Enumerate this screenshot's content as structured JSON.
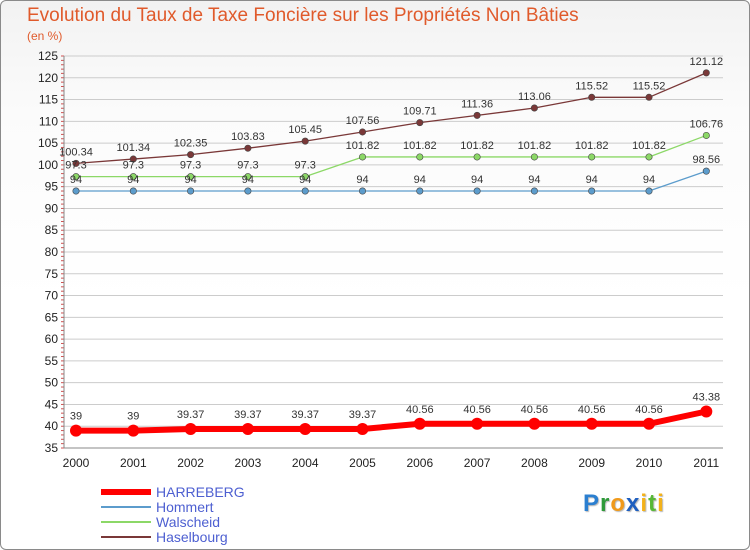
{
  "chart_data": {
    "type": "line",
    "title": "Evolution du Taux de Taxe Foncière sur les Propriétés Non Bâties",
    "subtitle": "(en %)",
    "xlabel": "",
    "ylabel": "",
    "ylim": [
      35,
      125
    ],
    "y_ticks": [
      35,
      40,
      45,
      50,
      55,
      60,
      65,
      70,
      75,
      80,
      85,
      90,
      95,
      100,
      105,
      110,
      115,
      120,
      125
    ],
    "categories": [
      "2000",
      "2001",
      "2002",
      "2003",
      "2004",
      "2005",
      "2006",
      "2007",
      "2008",
      "2009",
      "2010",
      "2011"
    ],
    "grid": "horizontal",
    "legend_position": "bottom-left",
    "series": [
      {
        "name": "HARREBERG",
        "color": "#ff0000",
        "values": [
          39,
          39,
          39.37,
          39.37,
          39.37,
          39.37,
          40.56,
          40.56,
          40.56,
          40.56,
          40.56,
          43.38
        ],
        "labels": [
          "39",
          "39",
          "39.37",
          "39.37",
          "39.37",
          "39.37",
          "40.56",
          "40.56",
          "40.56",
          "40.56",
          "40.56",
          "43.38"
        ]
      },
      {
        "name": "Hommert",
        "color": "#5c9ccc",
        "values": [
          94,
          94,
          94,
          94,
          94,
          94,
          94,
          94,
          94,
          94,
          94,
          98.56
        ],
        "labels": [
          "94",
          "94",
          "94",
          "94",
          "94",
          "94",
          "94",
          "94",
          "94",
          "94",
          "94",
          "98.56"
        ]
      },
      {
        "name": "Walscheid",
        "color": "#8cd867",
        "values": [
          97.3,
          97.3,
          97.3,
          97.3,
          97.3,
          101.82,
          101.82,
          101.82,
          101.82,
          101.82,
          101.82,
          106.76
        ],
        "labels": [
          "97.3",
          "97.3",
          "97.3",
          "97.3",
          "97.3",
          "101.82",
          "101.82",
          "101.82",
          "101.82",
          "101.82",
          "101.82",
          "106.76"
        ]
      },
      {
        "name": "Haselbourg",
        "color": "#7a3838",
        "values": [
          100.34,
          101.34,
          102.35,
          103.83,
          105.45,
          107.56,
          109.71,
          111.36,
          113.06,
          115.52,
          115.52,
          121.12
        ],
        "labels": [
          "100.34",
          "101.34",
          "102.35",
          "103.83",
          "105.45",
          "107.56",
          "109.71",
          "111.36",
          "113.06",
          "115.52",
          "115.52",
          "121.12"
        ]
      }
    ]
  },
  "logo": {
    "p": "P",
    "r": "r",
    "o": "o",
    "x": "x",
    "i1": "i",
    "t": "t",
    "i2": "i"
  },
  "colors": {
    "title": "#e05a2b",
    "legend_text": "#4d5fd1",
    "grid": "#cccccc"
  }
}
